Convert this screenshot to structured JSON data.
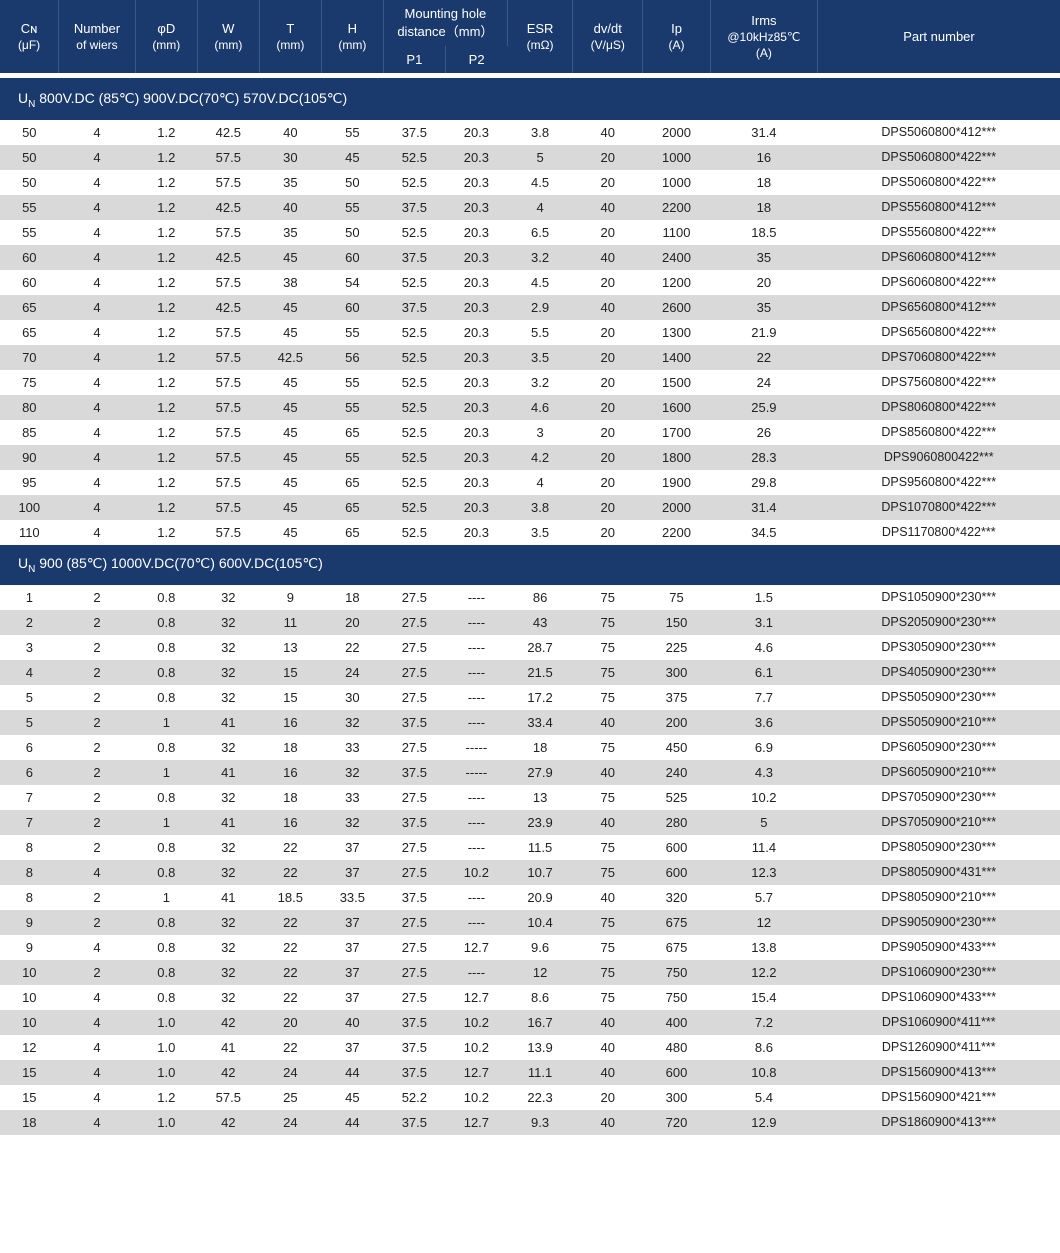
{
  "colors": {
    "header_bg": "#1a3a6e",
    "header_border": "#3a5a8e",
    "row_alt_bg": "#d9d9d9",
    "row_bg": "#ffffff",
    "text": "#222222"
  },
  "columns": {
    "widths_pct": [
      5.2,
      6.8,
      5.5,
      5.5,
      5.5,
      5.5,
      5.5,
      5.5,
      5.8,
      6.2,
      6.0,
      9.5,
      21.5
    ],
    "headers": [
      {
        "l1": "Cɴ",
        "l2": "(μF)"
      },
      {
        "l1": "Number",
        "l2": "of wiers"
      },
      {
        "l1": "φD",
        "l2": "(mm)"
      },
      {
        "l1": "W",
        "l2": "(mm)"
      },
      {
        "l1": "T",
        "l2": "(mm)"
      },
      {
        "l1": "H",
        "l2": "(mm)"
      },
      {
        "group": "Mounting hole distance（mm）",
        "sub": [
          "P1",
          "P2"
        ]
      },
      {
        "l1": "ESR",
        "l2": "(mΩ)"
      },
      {
        "l1": "dv/dt",
        "l2": "(V/μS)"
      },
      {
        "l1": "Ip",
        "l2": "(A)"
      },
      {
        "l1": "Irms",
        "l2": "@10kHz85℃",
        "l3": "(A)"
      },
      {
        "l1": "Part number"
      }
    ]
  },
  "sections": [
    {
      "title_html": "U<span class='sub'>N</span> 800V.DC (85℃)  900V.DC(70℃)  570V.DC(105℃)",
      "rows": [
        [
          "50",
          "4",
          "1.2",
          "42.5",
          "40",
          "55",
          "37.5",
          "20.3",
          "3.8",
          "40",
          "2000",
          "31.4",
          "DPS5060800*412***"
        ],
        [
          "50",
          "4",
          "1.2",
          "57.5",
          "30",
          "45",
          "52.5",
          "20.3",
          "5",
          "20",
          "1000",
          "16",
          "DPS5060800*422***"
        ],
        [
          "50",
          "4",
          "1.2",
          "57.5",
          "35",
          "50",
          "52.5",
          "20.3",
          "4.5",
          "20",
          "1000",
          "18",
          "DPS5060800*422***"
        ],
        [
          "55",
          "4",
          "1.2",
          "42.5",
          "40",
          "55",
          "37.5",
          "20.3",
          "4",
          "40",
          "2200",
          "18",
          "DPS5560800*412***"
        ],
        [
          "55",
          "4",
          "1.2",
          "57.5",
          "35",
          "50",
          "52.5",
          "20.3",
          "6.5",
          "20",
          "1100",
          "18.5",
          "DPS5560800*422***"
        ],
        [
          "60",
          "4",
          "1.2",
          "42.5",
          "45",
          "60",
          "37.5",
          "20.3",
          "3.2",
          "40",
          "2400",
          "35",
          "DPS6060800*412***"
        ],
        [
          "60",
          "4",
          "1.2",
          "57.5",
          "38",
          "54",
          "52.5",
          "20.3",
          "4.5",
          "20",
          "1200",
          "20",
          "DPS6060800*422***"
        ],
        [
          "65",
          "4",
          "1.2",
          "42.5",
          "45",
          "60",
          "37.5",
          "20.3",
          "2.9",
          "40",
          "2600",
          "35",
          "DPS6560800*412***"
        ],
        [
          "65",
          "4",
          "1.2",
          "57.5",
          "45",
          "55",
          "52.5",
          "20.3",
          "5.5",
          "20",
          "1300",
          "21.9",
          "DPS6560800*422***"
        ],
        [
          "70",
          "4",
          "1.2",
          "57.5",
          "42.5",
          "56",
          "52.5",
          "20.3",
          "3.5",
          "20",
          "1400",
          "22",
          "DPS7060800*422***"
        ],
        [
          "75",
          "4",
          "1.2",
          "57.5",
          "45",
          "55",
          "52.5",
          "20.3",
          "3.2",
          "20",
          "1500",
          "24",
          "DPS7560800*422***"
        ],
        [
          "80",
          "4",
          "1.2",
          "57.5",
          "45",
          "55",
          "52.5",
          "20.3",
          "4.6",
          "20",
          "1600",
          "25.9",
          "DPS8060800*422***"
        ],
        [
          "85",
          "4",
          "1.2",
          "57.5",
          "45",
          "65",
          "52.5",
          "20.3",
          "3",
          "20",
          "1700",
          "26",
          "DPS8560800*422***"
        ],
        [
          "90",
          "4",
          "1.2",
          "57.5",
          "45",
          "55",
          "52.5",
          "20.3",
          "4.2",
          "20",
          "1800",
          "28.3",
          "DPS9060800422***"
        ],
        [
          "95",
          "4",
          "1.2",
          "57.5",
          "45",
          "65",
          "52.5",
          "20.3",
          "4",
          "20",
          "1900",
          "29.8",
          "DPS9560800*422***"
        ],
        [
          "100",
          "4",
          "1.2",
          "57.5",
          "45",
          "65",
          "52.5",
          "20.3",
          "3.8",
          "20",
          "2000",
          "31.4",
          "DPS1070800*422***"
        ],
        [
          "110",
          "4",
          "1.2",
          "57.5",
          "45",
          "65",
          "52.5",
          "20.3",
          "3.5",
          "20",
          "2200",
          "34.5",
          "DPS1170800*422***"
        ]
      ]
    },
    {
      "title_html": "U<span class='sub'>N</span> 900 (85℃)  1000V.DC(70℃)  600V.DC(105℃)",
      "rows": [
        [
          "1",
          "2",
          "0.8",
          "32",
          "9",
          "18",
          "27.5",
          "----",
          "86",
          "75",
          "75",
          "1.5",
          "DPS1050900*230***"
        ],
        [
          "2",
          "2",
          "0.8",
          "32",
          "11",
          "20",
          "27.5",
          "----",
          "43",
          "75",
          "150",
          "3.1",
          "DPS2050900*230***"
        ],
        [
          "3",
          "2",
          "0.8",
          "32",
          "13",
          "22",
          "27.5",
          "----",
          "28.7",
          "75",
          "225",
          "4.6",
          "DPS3050900*230***"
        ],
        [
          "4",
          "2",
          "0.8",
          "32",
          "15",
          "24",
          "27.5",
          "----",
          "21.5",
          "75",
          "300",
          "6.1",
          "DPS4050900*230***"
        ],
        [
          "5",
          "2",
          "0.8",
          "32",
          "15",
          "30",
          "27.5",
          "----",
          "17.2",
          "75",
          "375",
          "7.7",
          "DPS5050900*230***"
        ],
        [
          "5",
          "2",
          "1",
          "41",
          "16",
          "32",
          "37.5",
          "----",
          "33.4",
          "40",
          "200",
          "3.6",
          "DPS5050900*210***"
        ],
        [
          "6",
          "2",
          "0.8",
          "32",
          "18",
          "33",
          "27.5",
          "-----",
          "18",
          "75",
          "450",
          "6.9",
          "DPS6050900*230***"
        ],
        [
          "6",
          "2",
          "1",
          "41",
          "16",
          "32",
          "37.5",
          "-----",
          "27.9",
          "40",
          "240",
          "4.3",
          "DPS6050900*210***"
        ],
        [
          "7",
          "2",
          "0.8",
          "32",
          "18",
          "33",
          "27.5",
          "----",
          "13",
          "75",
          "525",
          "10.2",
          "DPS7050900*230***"
        ],
        [
          "7",
          "2",
          "1",
          "41",
          "16",
          "32",
          "37.5",
          "----",
          "23.9",
          "40",
          "280",
          "5",
          "DPS7050900*210***"
        ],
        [
          "8",
          "2",
          "0.8",
          "32",
          "22",
          "37",
          "27.5",
          "----",
          "11.5",
          "75",
          "600",
          "11.4",
          "DPS8050900*230***"
        ],
        [
          "8",
          "4",
          "0.8",
          "32",
          "22",
          "37",
          "27.5",
          "10.2",
          "10.7",
          "75",
          "600",
          "12.3",
          "DPS8050900*431***"
        ],
        [
          "8",
          "2",
          "1",
          "41",
          "18.5",
          "33.5",
          "37.5",
          "----",
          "20.9",
          "40",
          "320",
          "5.7",
          "DPS8050900*210***"
        ],
        [
          "9",
          "2",
          "0.8",
          "32",
          "22",
          "37",
          "27.5",
          "----",
          "10.4",
          "75",
          "675",
          "12",
          "DPS9050900*230***"
        ],
        [
          "9",
          "4",
          "0.8",
          "32",
          "22",
          "37",
          "27.5",
          "12.7",
          "9.6",
          "75",
          "675",
          "13.8",
          "DPS9050900*433***"
        ],
        [
          "10",
          "2",
          "0.8",
          "32",
          "22",
          "37",
          "27.5",
          "----",
          "12",
          "75",
          "750",
          "12.2",
          "DPS1060900*230***"
        ],
        [
          "10",
          "4",
          "0.8",
          "32",
          "22",
          "37",
          "27.5",
          "12.7",
          "8.6",
          "75",
          "750",
          "15.4",
          "DPS1060900*433***"
        ],
        [
          "10",
          "4",
          "1.0",
          "42",
          "20",
          "40",
          "37.5",
          "10.2",
          "16.7",
          "40",
          "400",
          "7.2",
          "DPS1060900*411***"
        ],
        [
          "12",
          "4",
          "1.0",
          "41",
          "22",
          "37",
          "37.5",
          "10.2",
          "13.9",
          "40",
          "480",
          "8.6",
          "DPS1260900*411***"
        ],
        [
          "15",
          "4",
          "1.0",
          "42",
          "24",
          "44",
          "37.5",
          "12.7",
          "11.1",
          "40",
          "600",
          "10.8",
          "DPS1560900*413***"
        ],
        [
          "15",
          "4",
          "1.2",
          "57.5",
          "25",
          "45",
          "52.2",
          "10.2",
          "22.3",
          "20",
          "300",
          "5.4",
          "DPS1560900*421***"
        ],
        [
          "18",
          "4",
          "1.0",
          "42",
          "24",
          "44",
          "37.5",
          "12.7",
          "9.3",
          "40",
          "720",
          "12.9",
          "DPS1860900*413***"
        ]
      ]
    }
  ]
}
